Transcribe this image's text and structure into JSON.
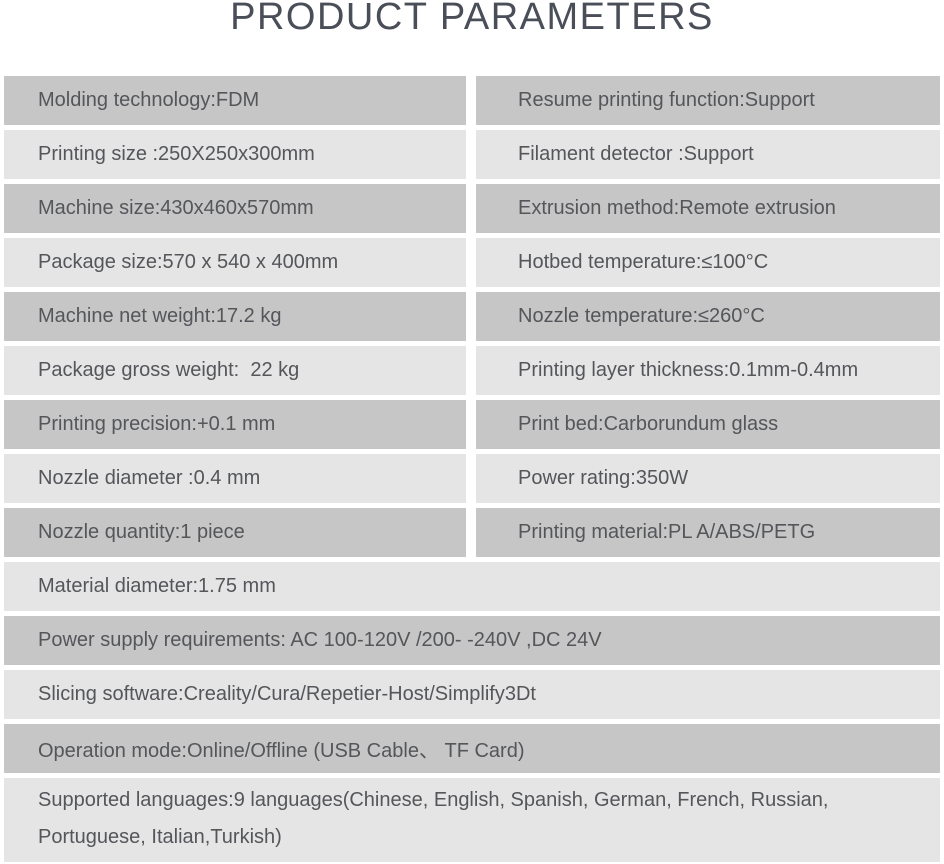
{
  "title": "PRODUCT PARAMETERS",
  "colors": {
    "background": "#ffffff",
    "row_dark": "#c6c6c6",
    "row_light": "#e5e5e5",
    "text": "#54565a",
    "title_text": "#4a4e58"
  },
  "table": {
    "paired_rows": [
      {
        "left": "Molding technology:FDM",
        "right": "Resume printing function:Support"
      },
      {
        "left": "Printing size :250X250x300mm",
        "right": "Filament detector :Support"
      },
      {
        "left": "Machine size:430x460x570mm",
        "right": "Extrusion method:Remote extrusion"
      },
      {
        "left": "Package size:570 x 540 x 400mm",
        "right": "Hotbed temperature:≤100°C"
      },
      {
        "left": "Machine net weight:17.2 kg",
        "right": "Nozzle temperature:≤260°C"
      },
      {
        "left": "Package gross weight:  22 kg",
        "right": "Printing layer thickness:0.1mm-0.4mm"
      },
      {
        "left": "Printing precision:+0.1 mm",
        "right": "Print bed:Carborundum glass"
      },
      {
        "left": "Nozzle diameter :0.4 mm",
        "right": "Power rating:350W"
      },
      {
        "left": "Nozzle quantity:1 piece",
        "right": "Printing material:PL A/ABS/PETG"
      }
    ],
    "full_rows": [
      "Material diameter:1.75 mm",
      "Power supply requirements: AC 100-120V /200- -240V ,DC 24V",
      "Slicing software:Creality/Cura/Repetier-Host/Simplify3Dt",
      "Operation mode:Online/Offline (USB Cable、 TF Card)",
      "Supported languages:9 languages(Chinese, English, Spanish, German, French, Russian, Portuguese, Italian,Turkish)"
    ]
  }
}
